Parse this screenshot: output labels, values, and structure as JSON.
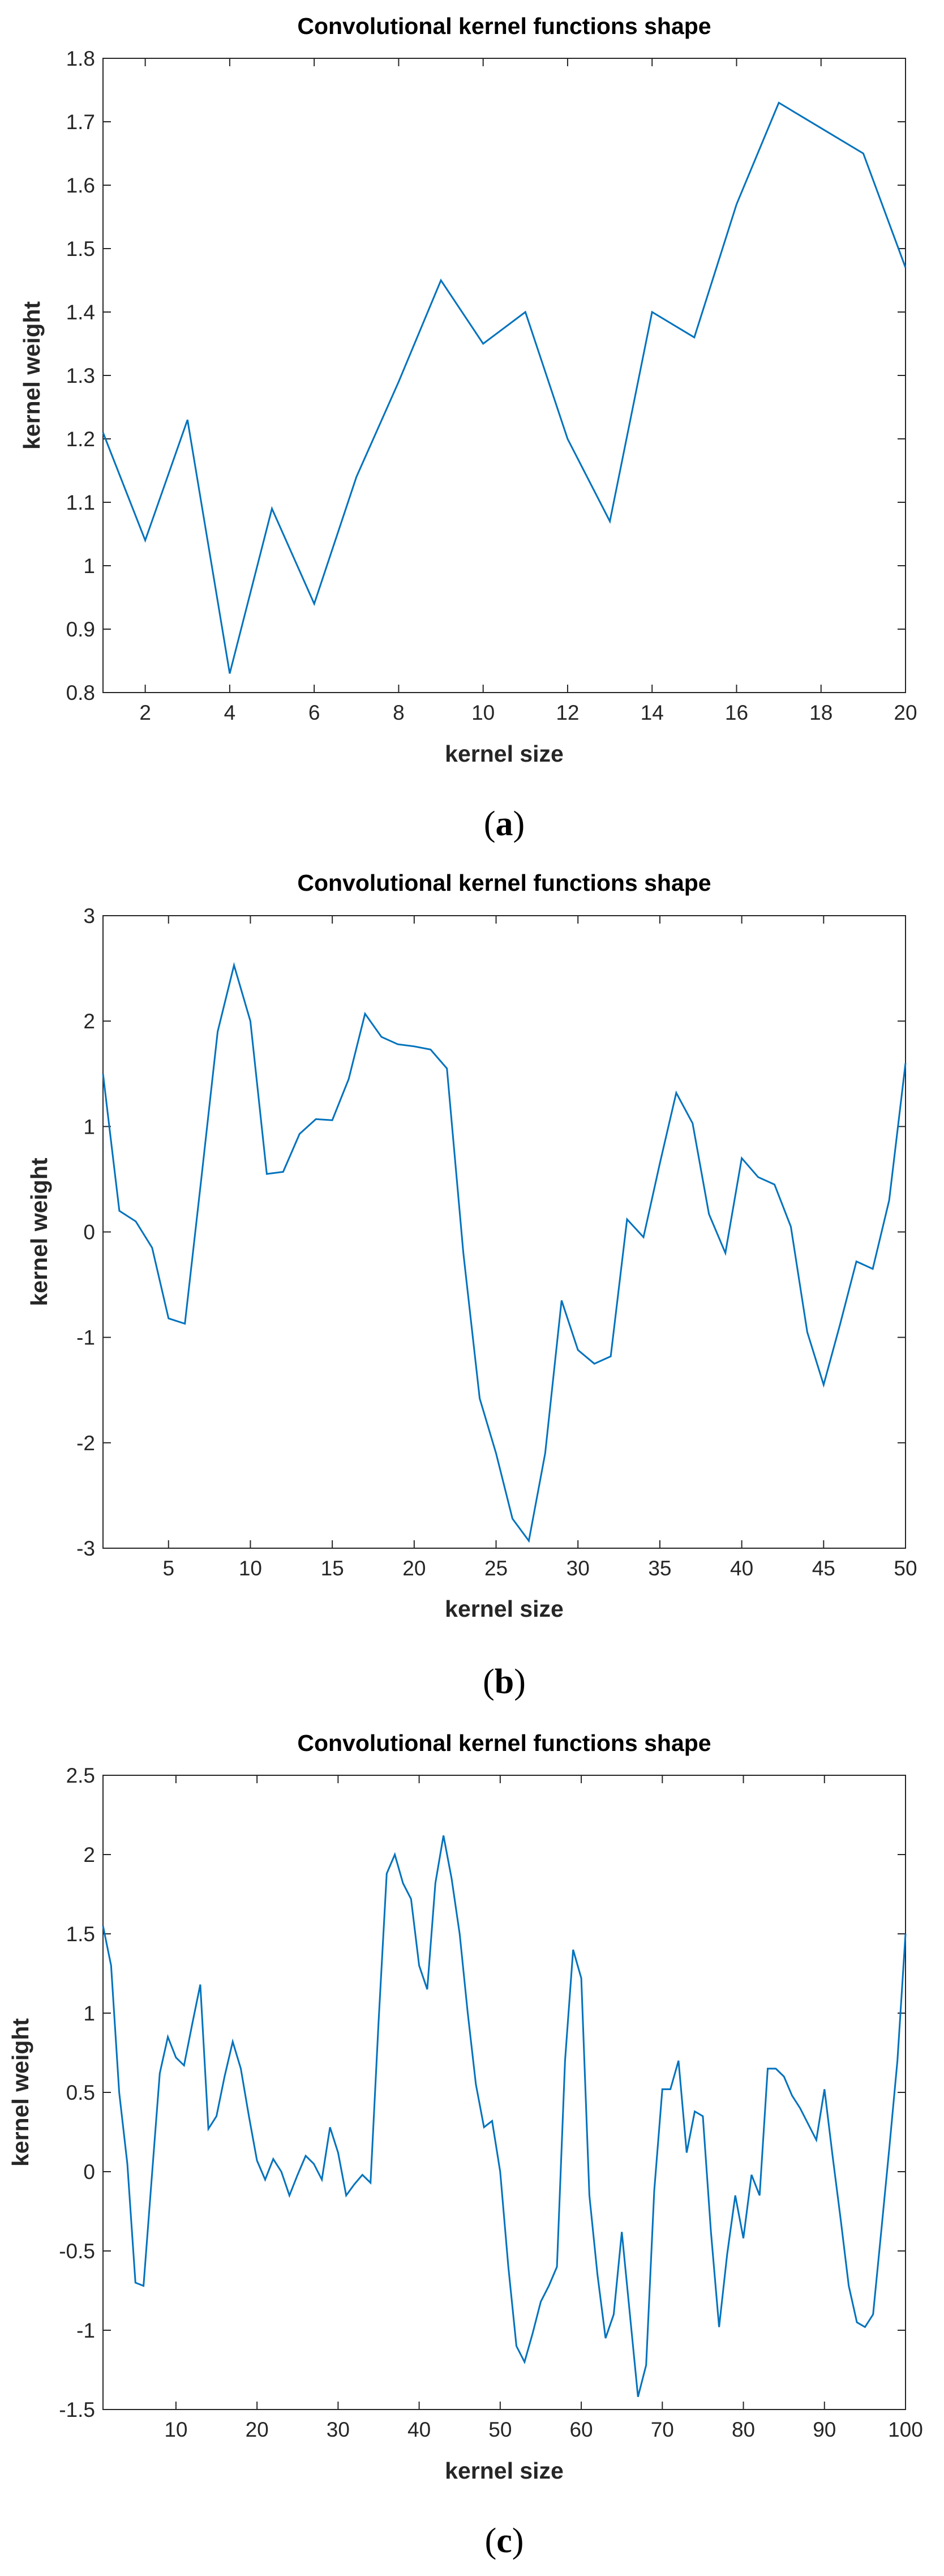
{
  "chart_data": [
    {
      "type": "line",
      "title": "Convolutional kernel functions shape",
      "xlabel": "kernel size",
      "ylabel": "kernel weight",
      "caption": "a",
      "xlim": [
        1,
        20
      ],
      "ylim": [
        0.8,
        1.8
      ],
      "xticks": [
        2,
        4,
        6,
        8,
        10,
        12,
        14,
        16,
        18,
        20
      ],
      "xtick_labels": [
        "2",
        "4",
        "6",
        "8",
        "10",
        "12",
        "14",
        "16",
        "18",
        "20"
      ],
      "yticks": [
        0.8,
        0.9,
        1.0,
        1.1,
        1.2,
        1.3,
        1.4,
        1.5,
        1.6,
        1.7,
        1.8
      ],
      "ytick_labels": [
        "0.8",
        "0.9",
        "1",
        "1.1",
        "1.2",
        "1.3",
        "1.4",
        "1.5",
        "1.6",
        "1.7",
        "1.8"
      ],
      "color": "#0072BD",
      "x": [
        1,
        2,
        3,
        4,
        5,
        6,
        7,
        8,
        9,
        10,
        11,
        12,
        13,
        14,
        15,
        16,
        17,
        18,
        19,
        20
      ],
      "values": [
        1.21,
        1.04,
        1.23,
        0.83,
        1.09,
        0.94,
        1.14,
        1.29,
        1.45,
        1.35,
        1.4,
        1.2,
        1.07,
        1.4,
        1.36,
        1.57,
        1.73,
        1.69,
        1.65,
        1.47
      ]
    },
    {
      "type": "line",
      "title": "Convolutional kernel functions shape",
      "xlabel": "kernel size",
      "ylabel": "kernel weight",
      "caption": "b",
      "xlim": [
        1,
        50
      ],
      "ylim": [
        -3,
        3
      ],
      "xticks": [
        5,
        10,
        15,
        20,
        25,
        30,
        35,
        40,
        45,
        50
      ],
      "xtick_labels": [
        "5",
        "10",
        "15",
        "20",
        "25",
        "30",
        "35",
        "40",
        "45",
        "50"
      ],
      "yticks": [
        -3,
        -2,
        -1,
        0,
        1,
        2,
        3
      ],
      "ytick_labels": [
        "-3",
        "-2",
        "-1",
        "0",
        "1",
        "2",
        "3"
      ],
      "color": "#0072BD",
      "x": [
        1,
        2,
        3,
        4,
        5,
        6,
        7,
        8,
        9,
        10,
        11,
        12,
        13,
        14,
        15,
        16,
        17,
        18,
        19,
        20,
        21,
        22,
        23,
        24,
        25,
        26,
        27,
        28,
        29,
        30,
        31,
        32,
        33,
        34,
        35,
        36,
        37,
        38,
        39,
        40,
        41,
        42,
        43,
        44,
        45,
        46,
        47,
        48,
        49,
        50
      ],
      "values": [
        1.5,
        0.2,
        0.1,
        -0.15,
        -0.82,
        -0.87,
        0.5,
        1.9,
        2.53,
        2.0,
        0.55,
        0.57,
        0.93,
        1.07,
        1.06,
        1.45,
        2.07,
        1.85,
        1.78,
        1.76,
        1.73,
        1.55,
        -0.2,
        -1.58,
        -2.1,
        -2.72,
        -2.93,
        -2.1,
        -0.65,
        -1.12,
        -1.25,
        -1.18,
        0.12,
        -0.05,
        0.65,
        1.32,
        1.03,
        0.17,
        -0.2,
        0.7,
        0.52,
        0.45,
        0.05,
        -0.95,
        -1.45,
        -0.88,
        -0.28,
        -0.35,
        0.3,
        1.6
      ]
    },
    {
      "type": "line",
      "title": "Convolutional kernel functions shape",
      "xlabel": "kernel size",
      "ylabel": "kernel weight",
      "caption": "c",
      "xlim": [
        1,
        100
      ],
      "ylim": [
        -1.5,
        2.5
      ],
      "xticks": [
        10,
        20,
        30,
        40,
        50,
        60,
        70,
        80,
        90,
        100
      ],
      "xtick_labels": [
        "10",
        "20",
        "30",
        "40",
        "50",
        "60",
        "70",
        "80",
        "90",
        "100"
      ],
      "yticks": [
        -1.5,
        -1,
        -0.5,
        0,
        0.5,
        1,
        1.5,
        2,
        2.5
      ],
      "ytick_labels": [
        "-1.5",
        "-1",
        "-0.5",
        "0",
        "0.5",
        "1",
        "1.5",
        "2",
        "2.5"
      ],
      "color": "#0072BD",
      "x": [
        1,
        2,
        3,
        4,
        5,
        6,
        7,
        8,
        9,
        10,
        11,
        12,
        13,
        14,
        15,
        16,
        17,
        18,
        19,
        20,
        21,
        22,
        23,
        24,
        25,
        26,
        27,
        28,
        29,
        30,
        31,
        32,
        33,
        34,
        35,
        36,
        37,
        38,
        39,
        40,
        41,
        42,
        43,
        44,
        45,
        46,
        47,
        48,
        49,
        50,
        51,
        52,
        53,
        54,
        55,
        56,
        57,
        58,
        59,
        60,
        61,
        62,
        63,
        64,
        65,
        66,
        67,
        68,
        69,
        70,
        71,
        72,
        73,
        74,
        75,
        76,
        77,
        78,
        79,
        80,
        81,
        82,
        83,
        84,
        85,
        86,
        87,
        88,
        89,
        90,
        91,
        92,
        93,
        94,
        95,
        96,
        97,
        98,
        99,
        100
      ],
      "values": [
        1.55,
        1.3,
        0.5,
        0.05,
        -0.7,
        -0.72,
        -0.05,
        0.62,
        0.85,
        0.72,
        0.67,
        0.93,
        1.18,
        0.27,
        0.35,
        0.6,
        0.82,
        0.65,
        0.35,
        0.07,
        -0.05,
        0.08,
        0.0,
        -0.15,
        -0.02,
        0.1,
        0.05,
        -0.05,
        0.28,
        0.12,
        -0.15,
        -0.08,
        -0.02,
        -0.07,
        0.95,
        1.88,
        2.0,
        1.82,
        1.72,
        1.3,
        1.15,
        1.82,
        2.12,
        1.85,
        1.5,
        1.0,
        0.55,
        0.28,
        0.32,
        0.0,
        -0.6,
        -1.1,
        -1.2,
        -1.02,
        -0.82,
        -0.72,
        -0.6,
        0.7,
        1.4,
        1.22,
        -0.15,
        -0.65,
        -1.05,
        -0.9,
        -0.38,
        -0.9,
        -1.42,
        -1.22,
        -0.12,
        0.52,
        0.52,
        0.7,
        0.12,
        0.38,
        0.35,
        -0.38,
        -0.98,
        -0.52,
        -0.15,
        -0.42,
        -0.02,
        -0.15,
        0.65,
        0.65,
        0.6,
        0.48,
        0.4,
        0.3,
        0.2,
        0.52,
        0.1,
        -0.3,
        -0.72,
        -0.95,
        -0.98,
        -0.9,
        -0.38,
        0.15,
        0.7,
        1.5
      ]
    }
  ]
}
